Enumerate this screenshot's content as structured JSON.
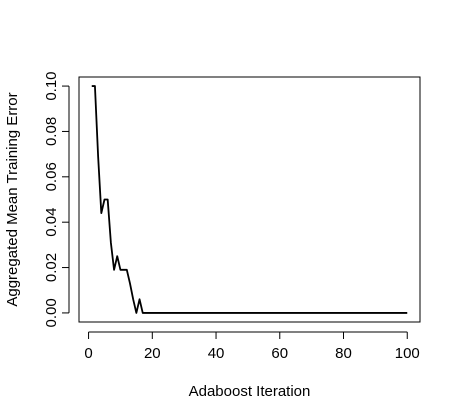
{
  "chart_data": {
    "type": "line",
    "xlabel": "Adaboost Iteration",
    "ylabel": "Aggregated Mean Training Error",
    "xlim": [
      -3,
      104
    ],
    "ylim": [
      -0.004,
      0.104
    ],
    "xticks": [
      0,
      20,
      40,
      60,
      80,
      100
    ],
    "yticks": [
      0.0,
      0.02,
      0.04,
      0.06,
      0.08,
      0.1
    ],
    "xtick_labels": [
      "0",
      "20",
      "40",
      "60",
      "80",
      "100"
    ],
    "ytick_labels": [
      "0.00",
      "0.02",
      "0.04",
      "0.06",
      "0.08",
      "0.10"
    ],
    "grid": false,
    "series": [
      {
        "color": "#000000",
        "x": [
          1,
          2,
          3,
          4,
          5,
          6,
          7,
          8,
          9,
          10,
          11,
          12,
          13,
          14,
          15,
          16,
          17,
          18,
          19,
          20,
          30,
          40,
          50,
          60,
          70,
          80,
          90,
          100
        ],
        "y": [
          0.1,
          0.1,
          0.069,
          0.044,
          0.05,
          0.05,
          0.031,
          0.019,
          0.025,
          0.019,
          0.019,
          0.019,
          0.013,
          0.006,
          0.0,
          0.006,
          0.0,
          0.0,
          0.0,
          0.0,
          0.0,
          0.0,
          0.0,
          0.0,
          0.0,
          0.0,
          0.0,
          0.0
        ]
      }
    ]
  }
}
